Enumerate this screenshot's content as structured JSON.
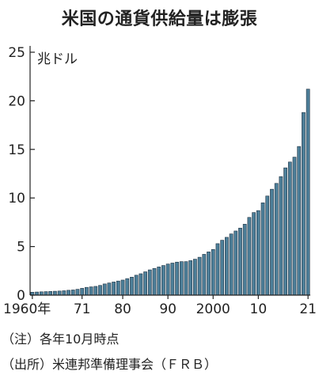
{
  "chart_data": {
    "type": "bar",
    "title": "米国の通貨供給量は膨張",
    "unit_label": "兆ドル",
    "y_ticks": [
      "0",
      "5",
      "10",
      "15",
      "20",
      "25"
    ],
    "ylim": [
      0,
      25
    ],
    "x_tick_labels": [
      {
        "year": 1960,
        "label": "1960年"
      },
      {
        "year": 1971,
        "label": "71"
      },
      {
        "year": 1980,
        "label": "80"
      },
      {
        "year": 1990,
        "label": "90"
      },
      {
        "year": 2000,
        "label": "2000"
      },
      {
        "year": 2010,
        "label": "10"
      },
      {
        "year": 2021,
        "label": "21"
      }
    ],
    "x": [
      1960,
      1961,
      1962,
      1963,
      1964,
      1965,
      1966,
      1967,
      1968,
      1969,
      1970,
      1971,
      1972,
      1973,
      1974,
      1975,
      1976,
      1977,
      1978,
      1979,
      1980,
      1981,
      1982,
      1983,
      1984,
      1985,
      1986,
      1987,
      1988,
      1989,
      1990,
      1991,
      1992,
      1993,
      1994,
      1995,
      1996,
      1997,
      1998,
      1999,
      2000,
      2001,
      2002,
      2003,
      2004,
      2005,
      2006,
      2007,
      2008,
      2009,
      2010,
      2011,
      2012,
      2013,
      2014,
      2015,
      2016,
      2017,
      2018,
      2019,
      2020,
      2021
    ],
    "values": [
      0.3,
      0.32,
      0.34,
      0.36,
      0.38,
      0.4,
      0.42,
      0.45,
      0.5,
      0.53,
      0.6,
      0.7,
      0.8,
      0.85,
      0.9,
      1.0,
      1.15,
      1.25,
      1.35,
      1.45,
      1.55,
      1.7,
      1.85,
      2.05,
      2.2,
      2.4,
      2.6,
      2.75,
      2.9,
      3.05,
      3.2,
      3.3,
      3.4,
      3.45,
      3.45,
      3.55,
      3.7,
      3.9,
      4.2,
      4.45,
      4.7,
      5.3,
      5.65,
      5.95,
      6.3,
      6.6,
      6.9,
      7.3,
      8.0,
      8.5,
      8.7,
      9.5,
      10.2,
      10.9,
      11.5,
      12.2,
      13.1,
      13.7,
      14.2,
      15.3,
      18.8,
      21.2
    ],
    "notes": [
      "（注）各年10月時点",
      "（出所）米連邦準備理事会（ＦＲＢ）"
    ]
  },
  "colors": {
    "bar_fill": "#4d7f99",
    "bar_stroke": "#1d3040",
    "axis": "#222222"
  }
}
